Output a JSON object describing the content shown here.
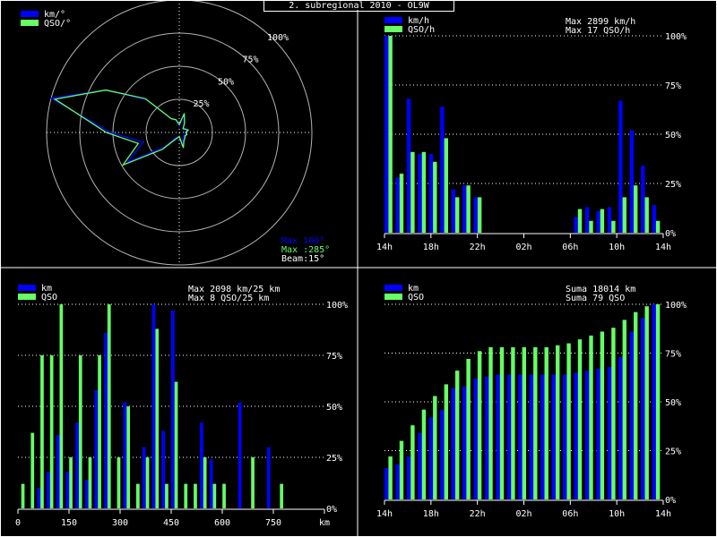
{
  "page_title": "2. subregional 2010 - OL9W",
  "colors": {
    "background": "#000000",
    "km_series": "#0000ff",
    "qso_series": "#66ff66",
    "grid": "#ffffff",
    "panel_border": "#ffffff",
    "text": "#ffffff"
  },
  "chart_data": [
    {
      "id": "polar",
      "type": "polar",
      "legend": [
        "km/°",
        "QSO/°"
      ],
      "ring_labels": [
        "25%",
        "50%",
        "75%",
        "100%"
      ],
      "info": [
        "Max 100°",
        "Max :285°",
        "Beam:15°"
      ],
      "angles": [
        0,
        15,
        30,
        45,
        60,
        75,
        90,
        105,
        120,
        135,
        150,
        165,
        180,
        195,
        210,
        225,
        240,
        255,
        270,
        285,
        300,
        315,
        330,
        345
      ],
      "series": [
        {
          "name": "km/°",
          "values": [
            5,
            14,
            7,
            4,
            6,
            6,
            4,
            6,
            4,
            5,
            5,
            12,
            3,
            4,
            4,
            15,
            45,
            28,
            52,
            100,
            64,
            35,
            12,
            10
          ]
        },
        {
          "name": "QSO/°",
          "values": [
            6,
            15,
            8,
            4,
            5,
            7,
            5,
            6,
            5,
            6,
            7,
            12,
            3,
            4,
            6,
            18,
            49,
            32,
            55,
            97,
            64,
            36,
            12,
            10
          ]
        }
      ]
    },
    {
      "id": "hourly",
      "type": "bar",
      "legend": [
        "km/h",
        "QSO/h"
      ],
      "info": [
        "Max  2899 km/h",
        "Max   17 QSO/h"
      ],
      "x_tick_labels": [
        "14h",
        "18h",
        "22h",
        "02h",
        "06h",
        "10h",
        "14h"
      ],
      "y_tick_labels": [
        "0%",
        "25%",
        "50%",
        "75%",
        "100%"
      ],
      "series": [
        {
          "name": "km/h",
          "values": [
            100,
            28,
            68,
            40,
            40,
            64,
            22,
            24,
            18,
            0,
            0,
            0,
            0,
            0,
            0,
            0,
            0,
            8,
            13,
            11,
            13,
            67,
            52,
            34,
            14
          ]
        },
        {
          "name": "QSO/h",
          "values": [
            100,
            30,
            41,
            41,
            36,
            48,
            18,
            24,
            18,
            0,
            0,
            0,
            0,
            0,
            0,
            0,
            0,
            12,
            6,
            12,
            6,
            18,
            24,
            18,
            6
          ]
        }
      ]
    },
    {
      "id": "distance",
      "type": "bar",
      "legend": [
        "km",
        "QSO"
      ],
      "info": [
        "Max  2098 km/25 km",
        "Max    8 QSO/25 km"
      ],
      "x_tick_labels": [
        "0",
        "150",
        "300",
        "450",
        "600",
        "750",
        "km"
      ],
      "y_tick_labels": [
        "0%",
        "25%",
        "50%",
        "75%",
        "100%"
      ],
      "series": [
        {
          "name": "km",
          "values": [
            0,
            0,
            10,
            18,
            36,
            18,
            42,
            14,
            58,
            86,
            0,
            52,
            0,
            30,
            100,
            38,
            97,
            0,
            0,
            42,
            24,
            0,
            0,
            52,
            0,
            0,
            30,
            0,
            0,
            0,
            0,
            0
          ]
        },
        {
          "name": "QSO",
          "values": [
            12,
            37,
            75,
            75,
            100,
            25,
            75,
            25,
            75,
            100,
            25,
            50,
            12,
            25,
            88,
            12,
            62,
            12,
            12,
            25,
            12,
            12,
            0,
            0,
            25,
            0,
            0,
            12,
            0,
            0,
            0,
            0
          ]
        }
      ]
    },
    {
      "id": "cumulative",
      "type": "bar",
      "legend": [
        "km",
        "QSO"
      ],
      "info": [
        "Suma  18014 km",
        "Suma    79 QSO"
      ],
      "x_tick_labels": [
        "14h",
        "18h",
        "22h",
        "02h",
        "06h",
        "10h",
        "14h"
      ],
      "y_tick_labels": [
        "0%",
        "25%",
        "50%",
        "75%",
        "100%"
      ],
      "series": [
        {
          "name": "km",
          "values": [
            16,
            18,
            22,
            34,
            42,
            46,
            57,
            58,
            62,
            63,
            64,
            64,
            64,
            64,
            64,
            64,
            64,
            65,
            66,
            67,
            68,
            73,
            86,
            93,
            100
          ]
        },
        {
          "name": "QSO",
          "values": [
            22,
            30,
            38,
            46,
            53,
            59,
            66,
            72,
            76,
            78,
            78,
            78,
            78,
            78,
            78,
            79,
            80,
            82,
            84,
            86,
            88,
            92,
            96,
            99,
            100
          ]
        }
      ]
    }
  ]
}
